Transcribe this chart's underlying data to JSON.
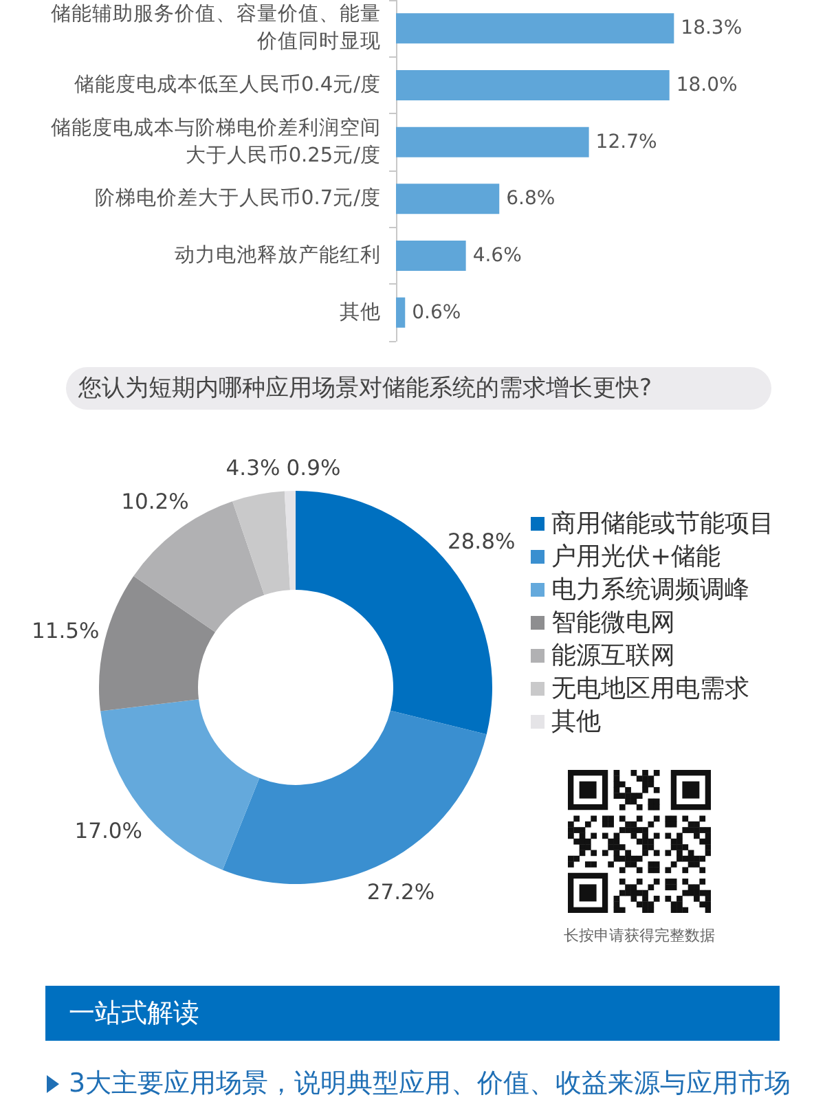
{
  "chart_data": [
    {
      "type": "bar",
      "orientation": "horizontal",
      "categories": [
        "储能辅助服务价值、容量价值、能量价值同时显现",
        "储能度电成本低至人民币0.4元/度",
        "储能度电成本与阶梯电价差利润空间大于人民币0.25元/度",
        "阶梯电价差大于人民币0.7元/度",
        "动力电池释放产能红利",
        "其他"
      ],
      "values": [
        18.3,
        18.0,
        12.7,
        6.8,
        4.6,
        0.6
      ],
      "value_labels": [
        "18.3%",
        "18.0%",
        "12.7%",
        "6.8%",
        "4.6%",
        "0.6%"
      ],
      "color": "#5fa6d9"
    },
    {
      "type": "donut",
      "title": "您认为短期内哪种应用场景对储能系统的需求增长更快?",
      "categories": [
        "商用储能或节能项目",
        "户用光伏+储能",
        "电力系统调频调峰",
        "智能微电网",
        "能源互联网",
        "无电地区用电需求",
        "其他"
      ],
      "values": [
        28.8,
        27.2,
        17.0,
        11.5,
        10.2,
        4.3,
        0.9
      ],
      "value_labels": [
        "28.8%",
        "27.2%",
        "17.0%",
        "11.5%",
        "10.2%",
        "4.3%",
        "0.9%"
      ],
      "colors": [
        "#0070c0",
        "#3a8fd0",
        "#64a9dc",
        "#8e8e90",
        "#b1b1b3",
        "#c9c9ca",
        "#e5e4e7"
      ],
      "legend": "right",
      "annotations": [
        "长按申请获得完整数据"
      ]
    },
    {
      "type": "other",
      "title": "一站式解读",
      "annotations": [
        "3大主要应用场景，说明典型应用、价值、收益来源与应用市场"
      ]
    }
  ]
}
